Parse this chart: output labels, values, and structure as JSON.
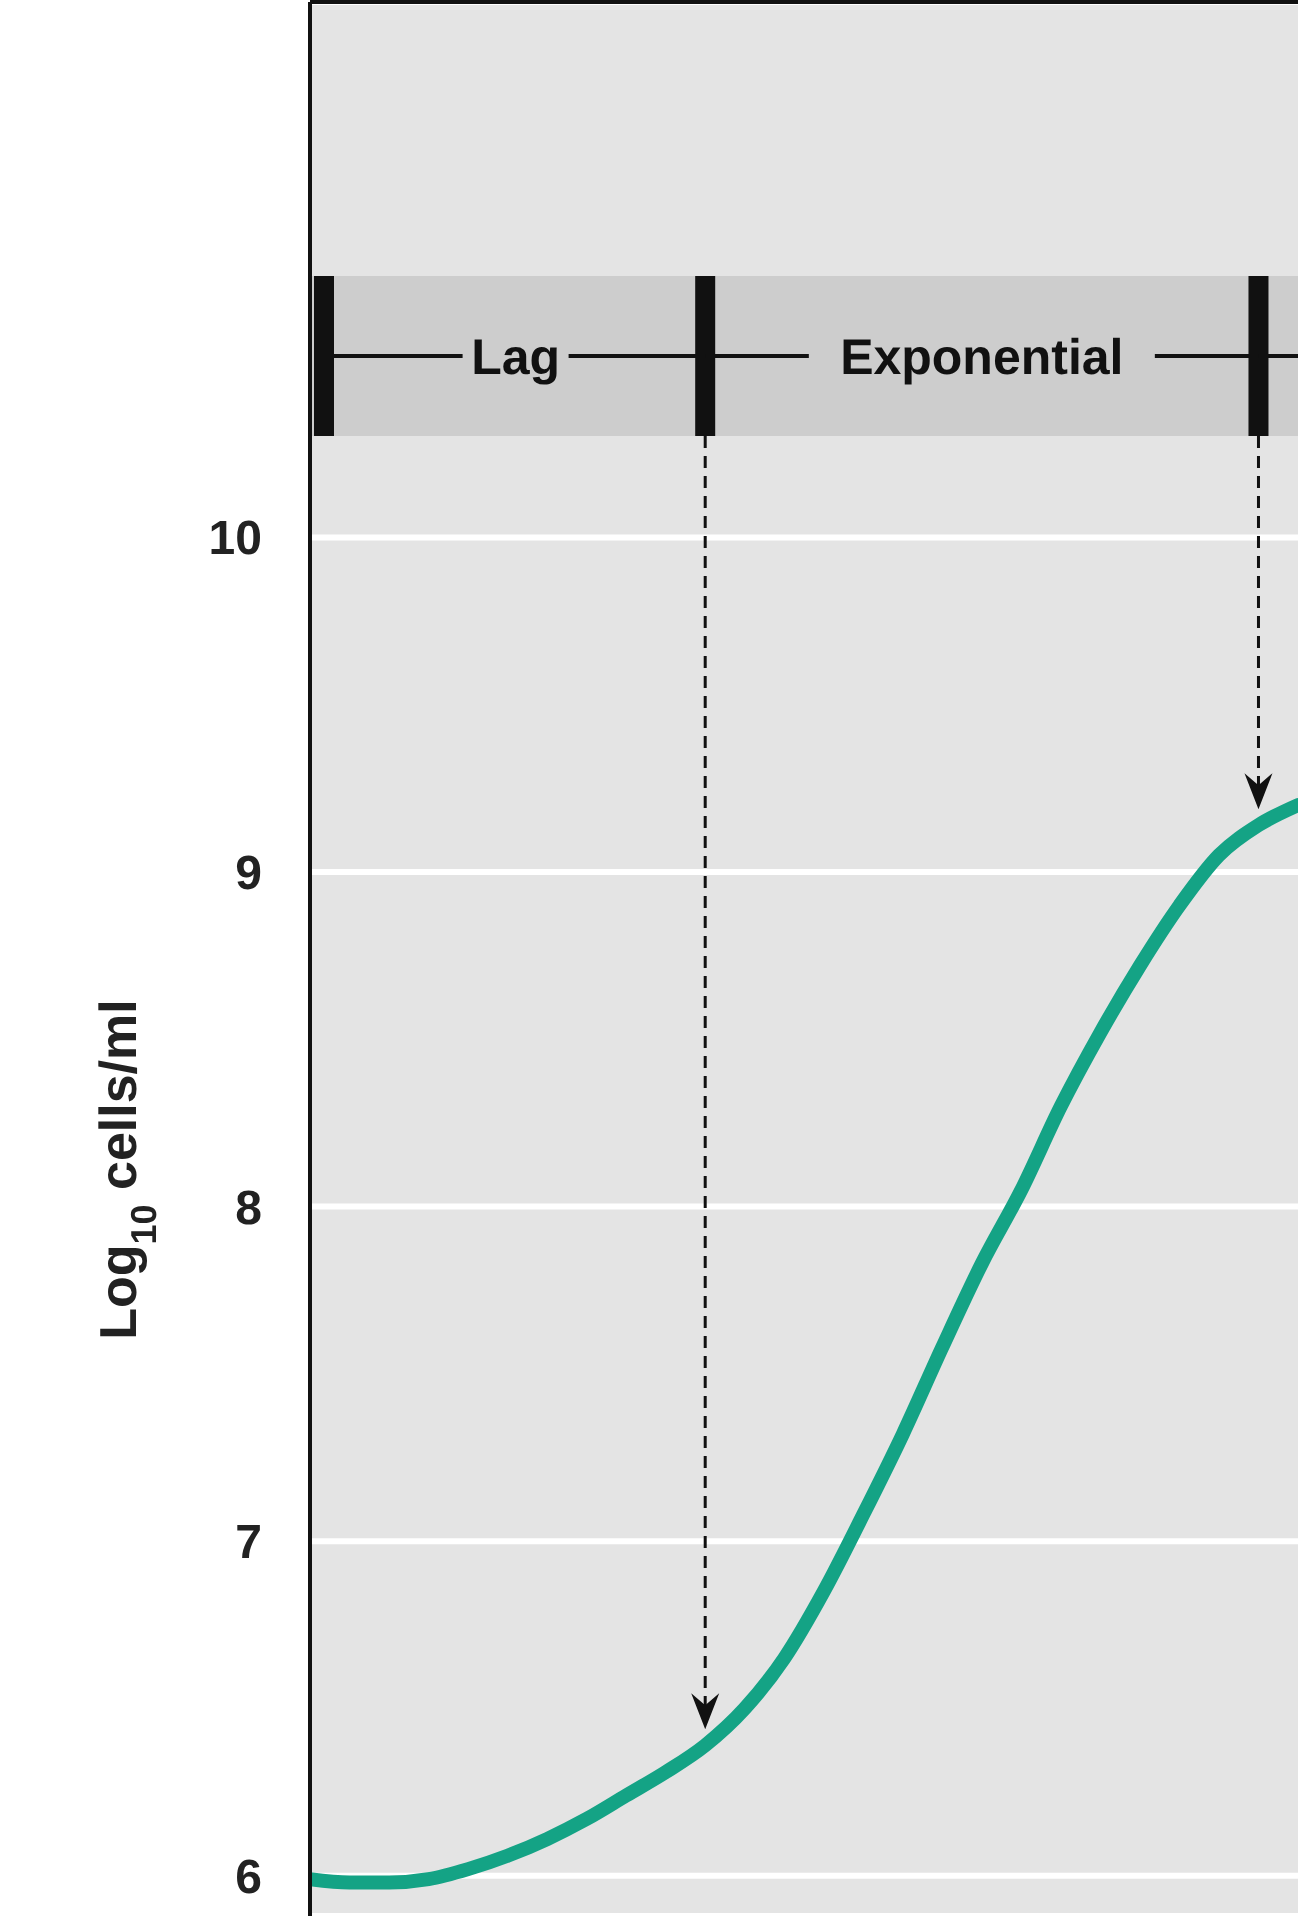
{
  "chart_data": {
    "type": "line",
    "ylabel": "Log$_{10}$ cells/ml",
    "annotations": [
      "Lag",
      "Exponential"
    ],
    "categories": [
      null,
      null,
      null,
      null,
      null,
      null,
      null,
      null,
      null,
      null,
      null,
      null,
      null,
      null,
      null,
      null,
      null,
      null,
      null,
      null,
      null,
      null,
      null,
      null,
      null,
      null
    ],
    "series": [
      {
        "color": "#14a385",
        "values": [
          5.99,
          5.98,
          5.98,
          5.99,
          6.02,
          6.06,
          6.11,
          6.17,
          6.24,
          6.31,
          6.39,
          6.5,
          6.65,
          6.85,
          7.08,
          7.32,
          7.58,
          7.83,
          8.05,
          8.3,
          8.52,
          8.72,
          8.9,
          9.05,
          9.14,
          9.2
        ]
      }
    ],
    "ylim": [
      5.88,
      11.6
    ],
    "yticks": [
      6,
      7,
      8,
      9,
      10
    ],
    "grid": "y",
    "tick_labels": "y",
    "marker": "none",
    "line_style": "solid"
  }
}
